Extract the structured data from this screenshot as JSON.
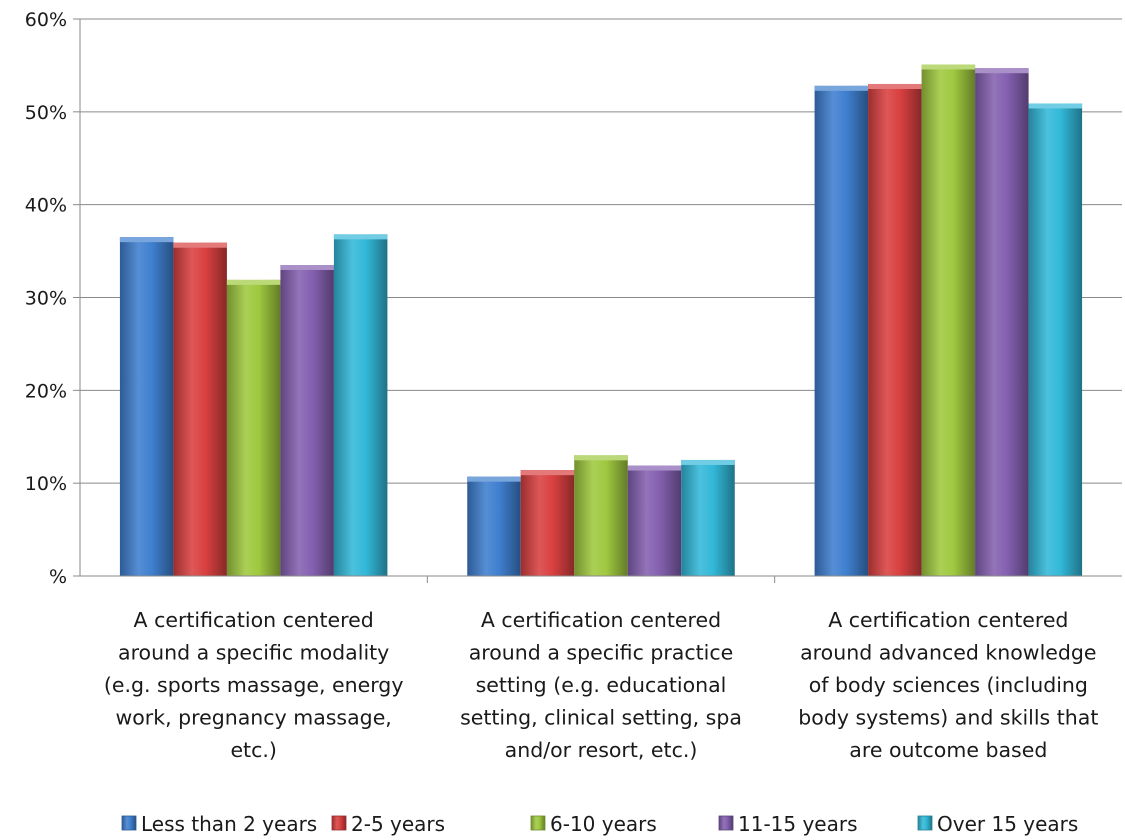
{
  "chart_data": {
    "type": "bar",
    "categories": [
      [
        "A certification centered",
        "around a specific modality",
        "(e.g. sports massage, energy",
        "work, pregnancy massage,",
        "etc.)"
      ],
      [
        "A certification centered",
        "around a specific practice",
        "setting (e.g. educational",
        "setting, clinical setting, spa",
        "and/or resort, etc.)"
      ],
      [
        "A certification centered",
        "around advanced knowledge",
        "of body sciences (including",
        "body systems) and skills that",
        "are outcome based"
      ]
    ],
    "series": [
      {
        "name": "Less than 2 years",
        "color": "#3f7fcf",
        "values": [
          36.5,
          10.7,
          52.8
        ]
      },
      {
        "name": "2-5 years",
        "color": "#d94040",
        "values": [
          35.9,
          11.4,
          53.0
        ]
      },
      {
        "name": "6-10 years",
        "color": "#9fc83f",
        "values": [
          31.9,
          13.0,
          55.1
        ]
      },
      {
        "name": "11-15 years",
        "color": "#8460b0",
        "values": [
          33.5,
          11.9,
          54.7
        ]
      },
      {
        "name": "Over 15 years",
        "color": "#32b8d8",
        "values": [
          36.8,
          12.5,
          50.9
        ]
      }
    ],
    "yticks": [
      {
        "value": 0,
        "label": "%"
      },
      {
        "value": 10,
        "label": "10%"
      },
      {
        "value": 20,
        "label": "20%"
      },
      {
        "value": 30,
        "label": "30%"
      },
      {
        "value": 40,
        "label": "40%"
      },
      {
        "value": 50,
        "label": "50%"
      },
      {
        "value": 60,
        "label": "60%"
      }
    ],
    "ylim": [
      0,
      60
    ],
    "grid": true,
    "legend": "bottom",
    "title": "",
    "xlabel": "",
    "ylabel": ""
  }
}
